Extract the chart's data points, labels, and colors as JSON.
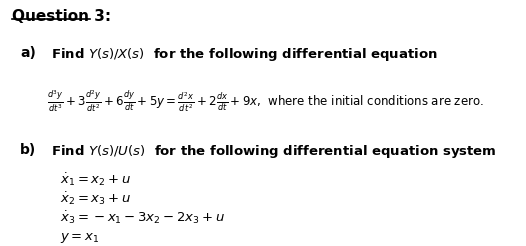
{
  "title": "Question 3:",
  "background_color": "#ffffff",
  "text_color": "#000000",
  "fig_width": 5.26,
  "fig_height": 2.46,
  "dpi": 100,
  "part_a_label": "a)",
  "part_a_intro": "Find $Y(s)/X(s)$  for the following differential equation",
  "part_b_label": "b)",
  "part_b_intro": "Find $Y(s)/U(s)$  for the following differential equation system",
  "eq1": "$\\dot{x}_1 = x_2 + u$",
  "eq2": "$\\dot{x}_2 = x_3 + u$",
  "eq3": "$\\dot{x}_3 = -x_1 - 3x_2 - 2x_3 + u$",
  "eq4": "$y = x_1$"
}
